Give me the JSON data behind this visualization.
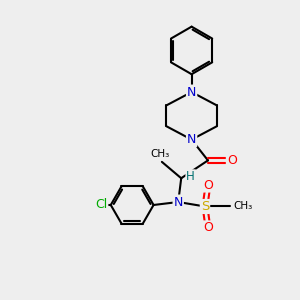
{
  "bg_color": "#eeeeee",
  "atom_colors": {
    "C": "#000000",
    "N": "#0000cc",
    "O": "#ff0000",
    "S": "#ccaa00",
    "Cl": "#00aa00",
    "H": "#007070"
  },
  "bond_color": "#000000",
  "bond_width": 1.5
}
